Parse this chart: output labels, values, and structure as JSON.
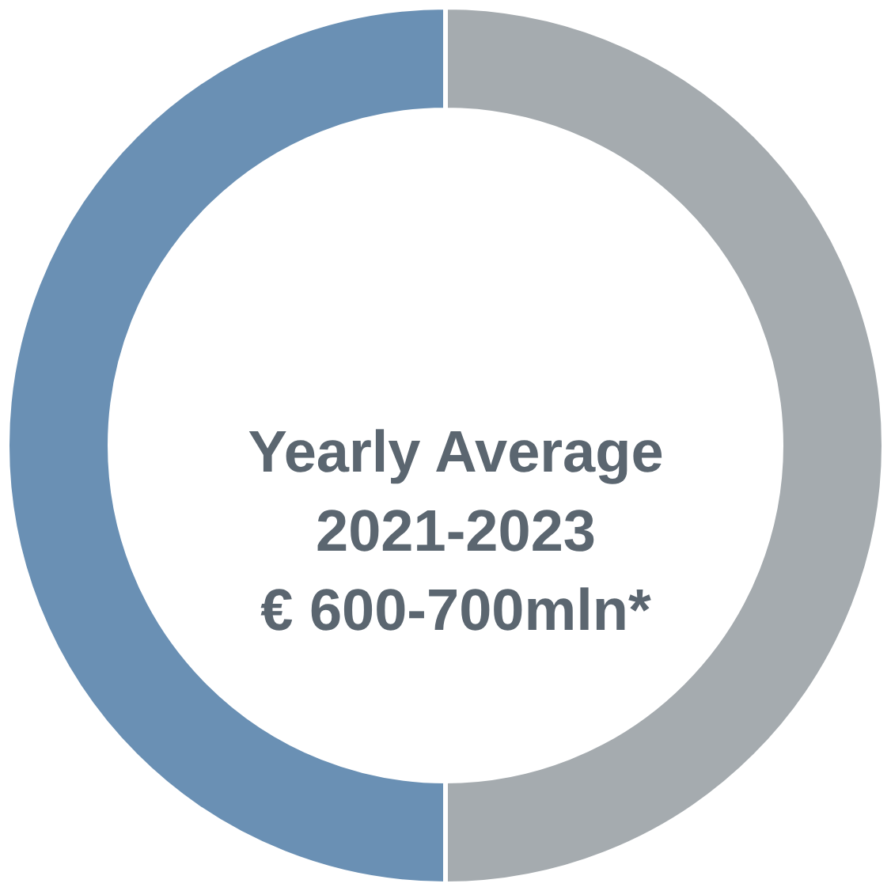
{
  "chart_data": {
    "type": "donut",
    "title": "Yearly Average\n2021-2023\n€ 600-700mln*",
    "categories": [
      null,
      null
    ],
    "values": [
      50,
      50
    ],
    "colors": [
      "#a5abaf",
      "#6a90b4"
    ]
  }
}
